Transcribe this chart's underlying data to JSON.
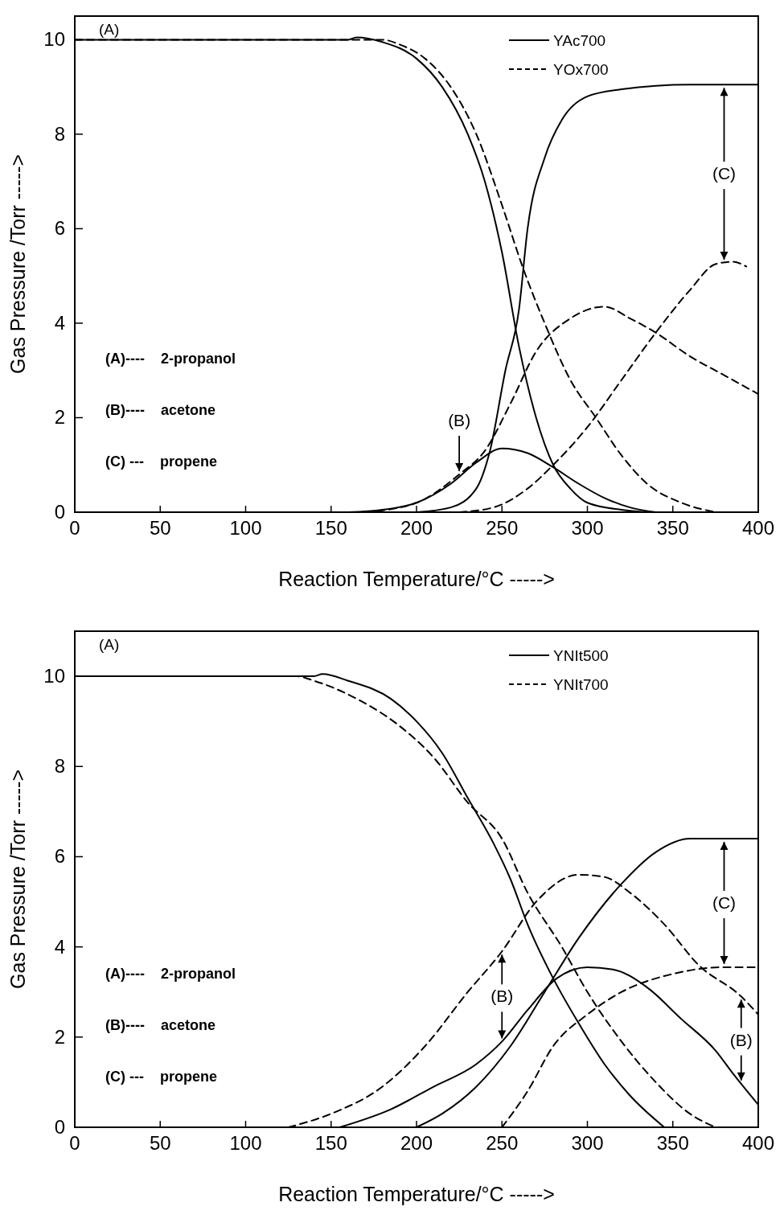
{
  "chart_data": [
    {
      "type": "line",
      "xlabel": "Reaction Temperature/°C ----->",
      "ylabel": "Gas Pressure /Torr ----->",
      "xlim": [
        0,
        400
      ],
      "ylim": [
        0,
        10.5
      ],
      "xticks": [
        0,
        50,
        100,
        150,
        200,
        250,
        300,
        350,
        400
      ],
      "yticks": [
        0,
        2,
        4,
        6,
        8,
        10
      ],
      "grid": false,
      "legend": "top right",
      "marker": "none",
      "annotations": [
        "(A)",
        "(A)----    2-propanol",
        "(B)----    acetone",
        "(C) ---    propene",
        {
          "text": "(B)",
          "x": 225,
          "y": 0.8
        },
        {
          "text": "(C)",
          "x": 380,
          "y": 9.05
        }
      ],
      "series": [
        {
          "name": "YAc700",
          "color": "#000000",
          "line_style": "solid",
          "x": [
            0,
            160,
            165,
            180,
            200,
            215,
            230,
            240,
            250,
            260,
            270,
            280,
            290,
            300,
            320,
            335
          ],
          "values": [
            10,
            10,
            10.05,
            9.95,
            9.6,
            9.0,
            8.0,
            7.0,
            5.5,
            3.5,
            2.0,
            1.0,
            0.5,
            0.2,
            0.05,
            0
          ]
        },
        {
          "color": "#000000",
          "line_style": "solid",
          "x": [
            160,
            180,
            200,
            220,
            235,
            250,
            265,
            280,
            295,
            310,
            325,
            340
          ],
          "values": [
            0,
            0.05,
            0.2,
            0.6,
            1.05,
            1.35,
            1.25,
            0.95,
            0.6,
            0.3,
            0.1,
            0
          ]
        },
        {
          "color": "#000000",
          "line_style": "solid",
          "x": [
            200,
            220,
            235,
            243,
            252,
            260,
            265,
            275,
            285,
            300,
            320,
            360,
            400
          ],
          "values": [
            0,
            0.1,
            0.5,
            1.3,
            3,
            4.3,
            6,
            7.5,
            8.3,
            8.8,
            8.95,
            9.05,
            9.05
          ]
        },
        {
          "name": "YOx700",
          "color": "#000000",
          "line_style": "dashed",
          "x": [
            0,
            180,
            190,
            205,
            220,
            235,
            250,
            262,
            275,
            290,
            305,
            320,
            335,
            355,
            375
          ],
          "values": [
            10,
            10,
            9.9,
            9.6,
            9.0,
            8.0,
            6.5,
            5.2,
            4.0,
            2.8,
            2.0,
            1.2,
            0.6,
            0.2,
            0
          ]
        },
        {
          "color": "#000000",
          "line_style": "dashed",
          "x": [
            170,
            200,
            225,
            240,
            255,
            270,
            290,
            310,
            325,
            340,
            360,
            380,
            400
          ],
          "values": [
            0,
            0.2,
            0.8,
            1.3,
            2.3,
            3.4,
            4.1,
            4.35,
            4.1,
            3.8,
            3.3,
            2.9,
            2.5
          ]
        },
        {
          "color": "#000000",
          "line_style": "dashed",
          "x": [
            225,
            245,
            265,
            280,
            300,
            320,
            340,
            360,
            375,
            385,
            393
          ],
          "values": [
            0,
            0.1,
            0.5,
            1.0,
            1.8,
            2.8,
            3.8,
            4.7,
            5.25,
            5.3,
            5.2
          ]
        }
      ]
    },
    {
      "type": "line",
      "xlabel": "Reaction Temperature/°C ----->",
      "ylabel": "Gas Pressure /Torr ----->",
      "xlim": [
        0,
        400
      ],
      "ylim": [
        0,
        11
      ],
      "xticks": [
        0,
        50,
        100,
        150,
        200,
        250,
        300,
        350,
        400
      ],
      "yticks": [
        0,
        2,
        4,
        6,
        8,
        10
      ],
      "grid": false,
      "legend": "top right",
      "marker": "none",
      "annotations": [
        "(A)",
        "(A)----    2-propanol",
        "(B)----    acetone",
        "(C) ---    propene",
        {
          "text": "(B)",
          "x": 250,
          "y": 3.9
        },
        {
          "text": "(C)",
          "x": 380,
          "y": 6.4
        },
        {
          "text": "(B)",
          "x": 390,
          "y": 2.9
        }
      ],
      "series": [
        {
          "name": "YNIt500",
          "color": "#000000",
          "line_style": "solid",
          "x": [
            0,
            140,
            145,
            160,
            185,
            200,
            215,
            230,
            245,
            255,
            265,
            280,
            295,
            310,
            325,
            345
          ],
          "values": [
            10,
            10,
            10.05,
            9.9,
            9.5,
            9.0,
            8.3,
            7.3,
            6.3,
            5.5,
            4.5,
            3.3,
            2.3,
            1.4,
            0.7,
            0
          ]
        },
        {
          "color": "#000000",
          "line_style": "solid",
          "x": [
            155,
            185,
            210,
            235,
            250,
            265,
            282,
            300,
            315,
            335,
            355,
            375,
            385,
            400
          ],
          "values": [
            0,
            0.4,
            0.9,
            1.4,
            1.9,
            2.6,
            3.3,
            3.55,
            3.5,
            3.1,
            2.4,
            1.7,
            1.2,
            0.5
          ]
        },
        {
          "color": "#000000",
          "line_style": "solid",
          "x": [
            200,
            215,
            235,
            255,
            275,
            295,
            320,
            340,
            360,
            400
          ],
          "values": [
            0,
            0.3,
            0.9,
            1.8,
            3.0,
            4.2,
            5.4,
            6.1,
            6.4,
            6.4
          ]
        },
        {
          "name": "YNIt700",
          "color": "#000000",
          "line_style": "dashed",
          "x": [
            0,
            130,
            140,
            165,
            190,
            210,
            230,
            250,
            265,
            285,
            300,
            320,
            340,
            360,
            375
          ],
          "values": [
            10,
            10,
            9.9,
            9.5,
            8.9,
            8.2,
            7.2,
            6.4,
            5.2,
            4.0,
            3.0,
            1.9,
            1.0,
            0.3,
            0
          ]
        },
        {
          "color": "#000000",
          "line_style": "dashed",
          "x": [
            125,
            150,
            180,
            205,
            230,
            250,
            270,
            295,
            310,
            325,
            345,
            365,
            390,
            400
          ],
          "values": [
            0,
            0.3,
            0.9,
            1.8,
            3.0,
            3.9,
            5.0,
            5.6,
            5.55,
            5.2,
            4.5,
            3.6,
            2.9,
            2.5
          ]
        },
        {
          "color": "#000000",
          "line_style": "dashed",
          "x": [
            250,
            265,
            280,
            300,
            320,
            350,
            380,
            400
          ],
          "values": [
            0,
            0.8,
            1.8,
            2.5,
            3.0,
            3.4,
            3.55,
            3.55
          ]
        }
      ]
    }
  ]
}
